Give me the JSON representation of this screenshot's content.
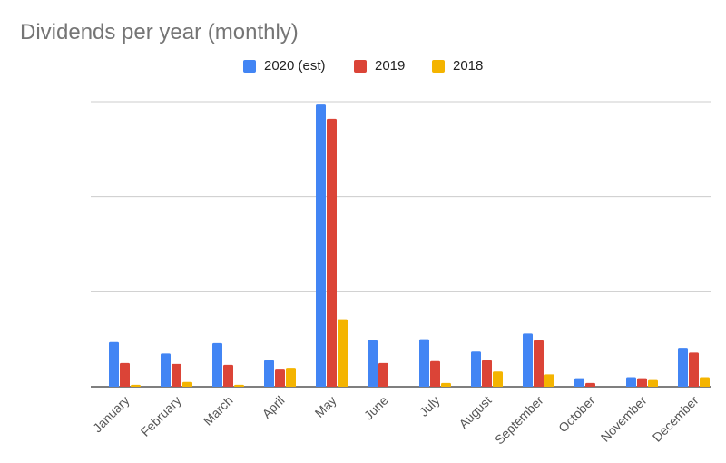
{
  "chart_data": {
    "type": "bar",
    "title": "Dividends per year (monthly)",
    "categories": [
      "January",
      "February",
      "March",
      "April",
      "May",
      "June",
      "July",
      "August",
      "September",
      "October",
      "November",
      "December"
    ],
    "series": [
      {
        "name": "2020 (est)",
        "color": "#4285f4",
        "values": [
          47,
          35,
          46,
          28,
          297,
          49,
          50,
          37,
          56,
          9,
          10,
          41
        ]
      },
      {
        "name": "2019",
        "color": "#db4437",
        "values": [
          25,
          24,
          23,
          18,
          282,
          25,
          27,
          28,
          49,
          4,
          9,
          36
        ]
      },
      {
        "name": "2018",
        "color": "#f4b400",
        "values": [
          2,
          5,
          2,
          20,
          71,
          0,
          4,
          16,
          13,
          0,
          7,
          10
        ]
      }
    ],
    "ylim": [
      0,
      300
    ],
    "y_ticks": [
      "",
      "",
      "",
      ""
    ],
    "grid": true,
    "legend_position": "top",
    "xlabel": "",
    "ylabel": ""
  }
}
